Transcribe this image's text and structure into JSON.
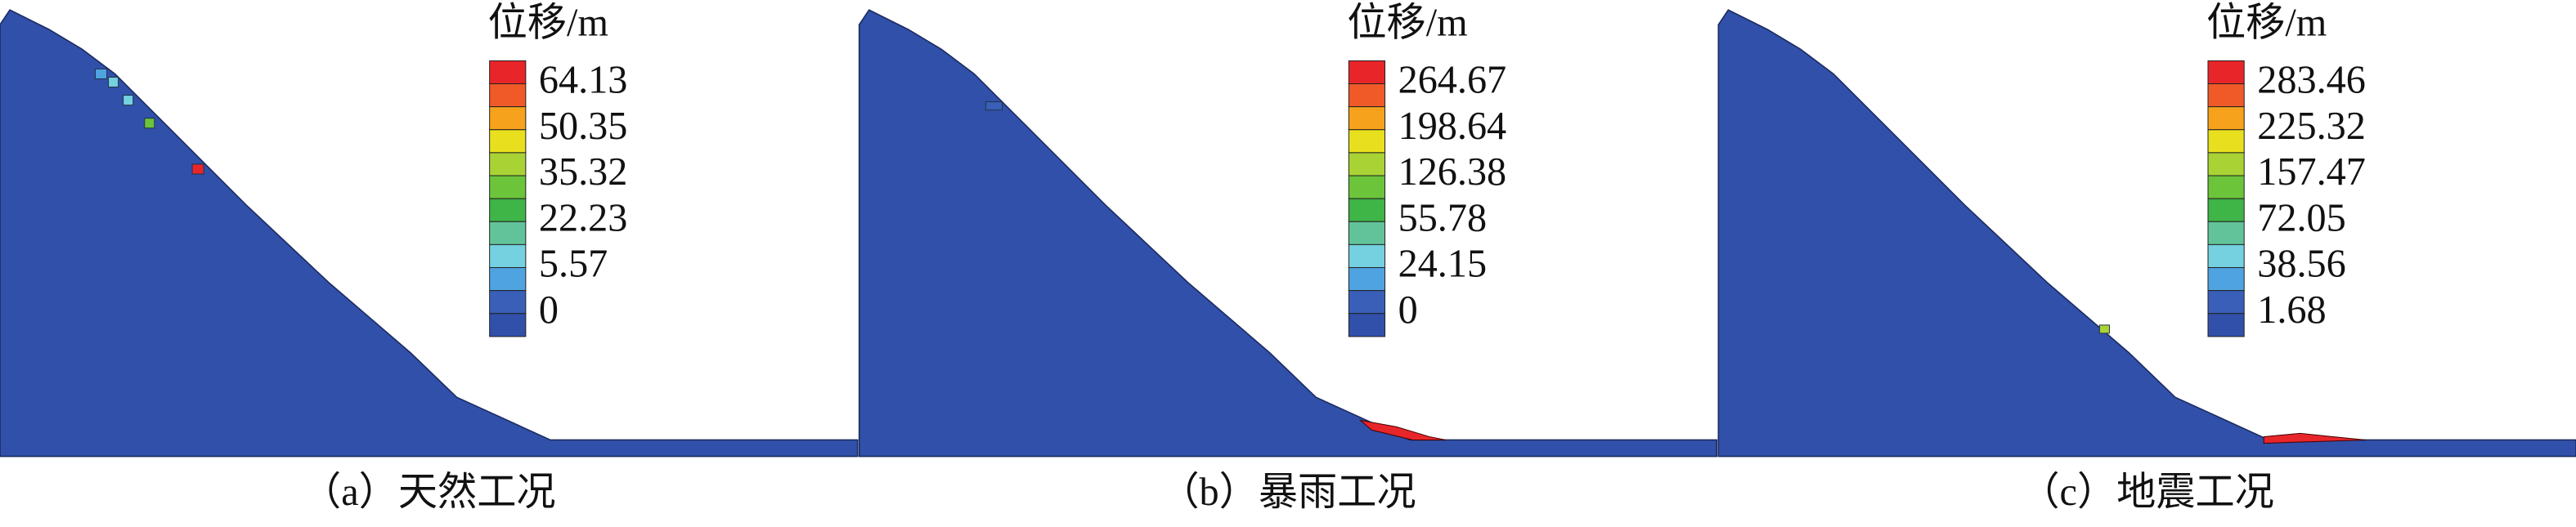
{
  "panels": [
    {
      "legend_title": "位移/m",
      "legend_labels": [
        "64.13",
        "50.35",
        "35.32",
        "22.23",
        "5.57",
        "0"
      ],
      "caption": "（a）天然工况"
    },
    {
      "legend_title": "位移/m",
      "legend_labels": [
        "264.67",
        "198.64",
        "126.38",
        "55.78",
        "24.15",
        "0"
      ],
      "caption": "（b）暴雨工况"
    },
    {
      "legend_title": "位移/m",
      "legend_labels": [
        "283.46",
        "225.32",
        "157.47",
        "72.05",
        "38.56",
        "1.68"
      ],
      "caption": "（c）地震工况"
    }
  ]
}
